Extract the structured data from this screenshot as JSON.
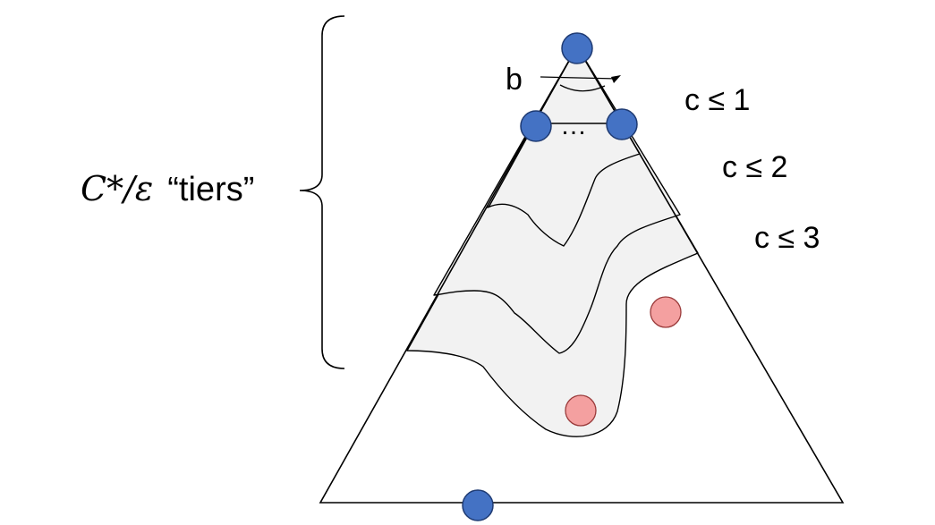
{
  "brace_label": {
    "math": "C*/ε",
    "text": "“tiers”"
  },
  "tiers": [
    {
      "label": "c ≤ 1"
    },
    {
      "label": "c ≤ 2"
    },
    {
      "label": "c ≤ 3"
    }
  ],
  "angle_label": "b",
  "ellipsis": "…",
  "colors": {
    "blue_node": "#4472c4",
    "red_node": "#f4a0a0",
    "tier_fill": "#f2f2f2"
  }
}
